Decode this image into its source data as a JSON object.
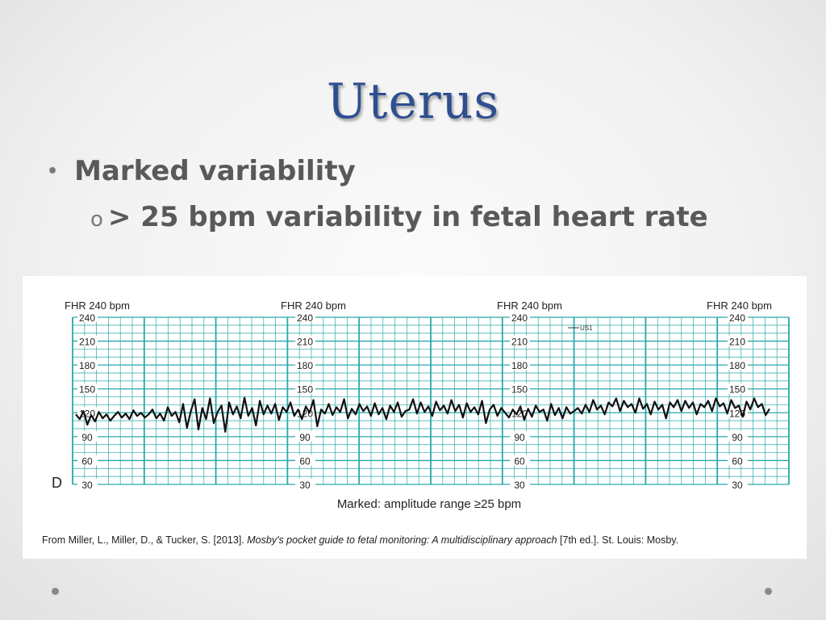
{
  "slide": {
    "title": "Uterus",
    "bullets": [
      {
        "marker": "•",
        "text": "Marked variability"
      },
      {
        "marker": "o",
        "text": "> 25 bpm variability in fetal heart rate"
      }
    ]
  },
  "figure": {
    "panel_letter": "D",
    "header_label": "FHR 240 bpm",
    "legend": "US1",
    "y_ticks": [
      "240",
      "210",
      "180",
      "150",
      "120",
      "90",
      "60",
      "30"
    ],
    "caption": "Marked: amplitude range ≥25 bpm",
    "citation_prefix": "From Miller, L., Miller, D., & Tucker, S. [2013]. ",
    "citation_italic": "Mosby's pocket guide to fetal monitoring: A multidisciplinary approach",
    "citation_suffix": " [7th ed.]. St. Louis: Mosby."
  },
  "chart_data": {
    "type": "line",
    "ylim": [
      30,
      240
    ],
    "grid": true,
    "series": [
      {
        "values": [
          118,
          112,
          122,
          105,
          117,
          109,
          121,
          113,
          118,
          110,
          116,
          121,
          114,
          119,
          112,
          123,
          116,
          120,
          114,
          118,
          124,
          113,
          119,
          110,
          127,
          116,
          121,
          108,
          131,
          101,
          122,
          137,
          99,
          126,
          112,
          138,
          107,
          121,
          129,
          96,
          133,
          118,
          128,
          113,
          139,
          116,
          126,
          104,
          135,
          118,
          129,
          119,
          131,
          111,
          127,
          121,
          133,
          116,
          124,
          112,
          128,
          120,
          136,
          103,
          124,
          119,
          131,
          117,
          127,
          121,
          137,
          113,
          125,
          118,
          131,
          122,
          128,
          116,
          132,
          118,
          126,
          112,
          129,
          121,
          133,
          115,
          122,
          124,
          137,
          119,
          133,
          121,
          128,
          116,
          134,
          123,
          129,
          119,
          136,
          122,
          130,
          114,
          132,
          121,
          127,
          118,
          135,
          107,
          124,
          130,
          116,
          126,
          120,
          114,
          124,
          118,
          128,
          111,
          125,
          115,
          129,
          121,
          124,
          110,
          131,
          117,
          126,
          113,
          127,
          119,
          122,
          126,
          119,
          130,
          121,
          136,
          124,
          129,
          118,
          133,
          128,
          138,
          122,
          135,
          127,
          131,
          120,
          138,
          125,
          131,
          118,
          134,
          124,
          130,
          113,
          133,
          127,
          136,
          122,
          135,
          126,
          133,
          118,
          131,
          127,
          135,
          122,
          138,
          128,
          132,
          119,
          136,
          126,
          129,
          115,
          134,
          124,
          138,
          127,
          131,
          117,
          125
        ]
      }
    ]
  }
}
